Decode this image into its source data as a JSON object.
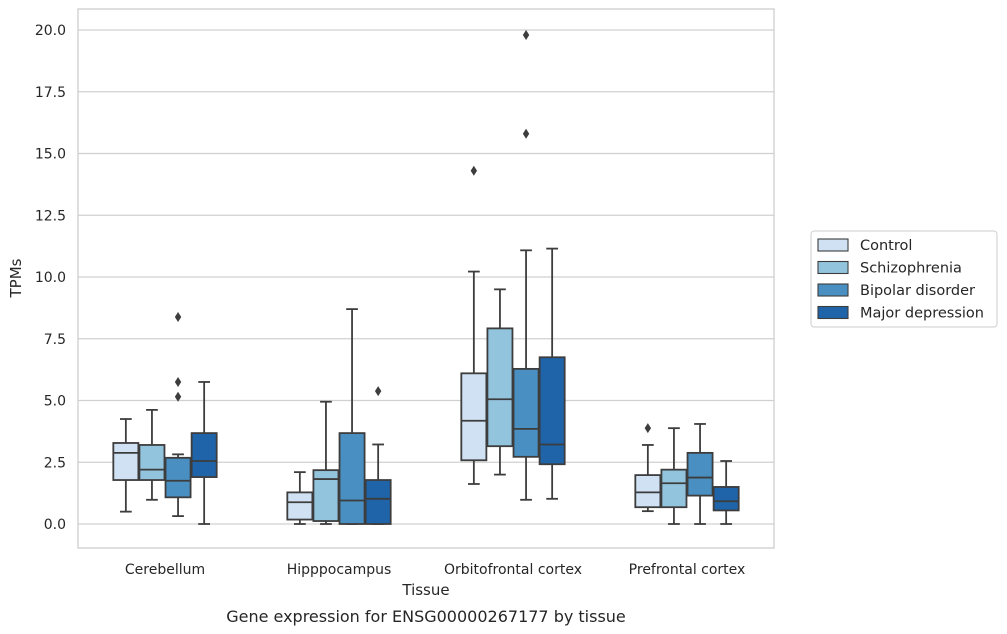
{
  "chart_data": {
    "type": "box",
    "xlabel": "Tissue",
    "ylabel": "TPMs",
    "caption": "Gene expression for ENSG00000267177 by tissue",
    "ylim": [
      -0.95,
      20.8
    ],
    "yticks": [
      "0.0",
      "2.5",
      "5.0",
      "7.5",
      "10.0",
      "12.5",
      "15.0",
      "17.5",
      "20.0"
    ],
    "grid": "horizontal",
    "legend_position": "right, outside plot",
    "categories": [
      "Cerebellum",
      "Hipppocampus",
      "Orbitofrontal cortex",
      "Prefrontal cortex"
    ],
    "series": [
      {
        "name": "Control",
        "color": "#cfe1f2",
        "boxes": [
          {
            "whislo": 0.5,
            "q1": 1.78,
            "med": 2.88,
            "q3": 3.28,
            "whishi": 4.25,
            "fliers": []
          },
          {
            "whislo": 0.0,
            "q1": 0.18,
            "med": 0.88,
            "q3": 1.28,
            "whishi": 2.1,
            "fliers": []
          },
          {
            "whislo": 1.62,
            "q1": 2.58,
            "med": 4.18,
            "q3": 6.1,
            "whishi": 10.22,
            "fliers": [
              14.3
            ]
          },
          {
            "whislo": 0.52,
            "q1": 0.68,
            "med": 1.28,
            "q3": 1.98,
            "whishi": 3.2,
            "fliers": [
              3.88
            ]
          }
        ]
      },
      {
        "name": "Schizophrenia",
        "color": "#93c4de",
        "boxes": [
          {
            "whislo": 0.98,
            "q1": 1.78,
            "med": 2.2,
            "q3": 3.2,
            "whishi": 4.62,
            "fliers": []
          },
          {
            "whislo": 0.0,
            "q1": 0.12,
            "med": 1.82,
            "q3": 2.18,
            "whishi": 4.95,
            "fliers": []
          },
          {
            "whislo": 2.0,
            "q1": 3.15,
            "med": 5.05,
            "q3": 7.92,
            "whishi": 9.5,
            "fliers": []
          },
          {
            "whislo": 0.0,
            "q1": 0.68,
            "med": 1.65,
            "q3": 2.2,
            "whishi": 3.88,
            "fliers": []
          }
        ]
      },
      {
        "name": "Bipolar disorder",
        "color": "#4a8fc1",
        "boxes": [
          {
            "whislo": 0.32,
            "q1": 1.08,
            "med": 1.75,
            "q3": 2.68,
            "whishi": 2.82,
            "fliers": [
              5.15,
              5.75,
              8.38
            ]
          },
          {
            "whislo": 0.0,
            "q1": 0.0,
            "med": 0.95,
            "q3": 3.68,
            "whishi": 8.7,
            "fliers": []
          },
          {
            "whislo": 0.98,
            "q1": 2.72,
            "med": 3.85,
            "q3": 6.28,
            "whishi": 11.08,
            "fliers": [
              15.8,
              19.8
            ]
          },
          {
            "whislo": 0.0,
            "q1": 1.15,
            "med": 1.88,
            "q3": 2.88,
            "whishi": 4.05,
            "fliers": []
          }
        ]
      },
      {
        "name": "Major depression",
        "color": "#1f63a8",
        "boxes": [
          {
            "whislo": 0.0,
            "q1": 1.9,
            "med": 2.55,
            "q3": 3.68,
            "whishi": 5.75,
            "fliers": []
          },
          {
            "whislo": 0.0,
            "q1": 0.0,
            "med": 1.02,
            "q3": 1.78,
            "whishi": 3.22,
            "fliers": [
              5.38
            ]
          },
          {
            "whislo": 1.02,
            "q1": 2.42,
            "med": 3.22,
            "q3": 6.75,
            "whishi": 11.15,
            "fliers": []
          },
          {
            "whislo": 0.0,
            "q1": 0.55,
            "med": 0.92,
            "q3": 1.5,
            "whishi": 2.55,
            "fliers": []
          }
        ]
      }
    ]
  }
}
